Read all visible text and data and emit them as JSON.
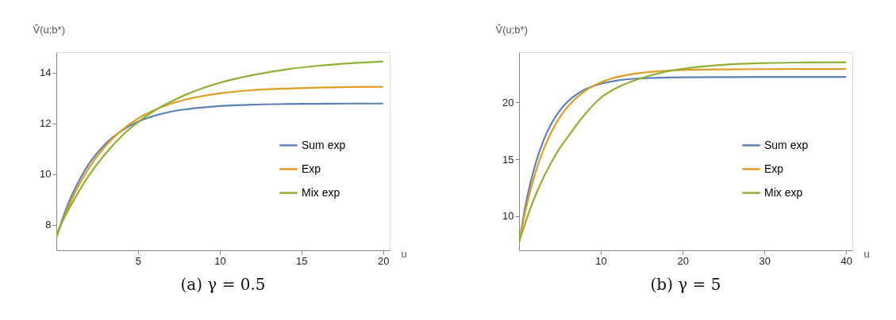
{
  "chart_data": [
    {
      "type": "line",
      "title": "(a) γ = 0.5",
      "xlabel": "u",
      "ylabel": "Ṽ(u;b*)",
      "x": [
        0,
        0.5,
        1,
        1.5,
        2,
        3,
        4,
        5,
        6,
        7,
        8,
        10,
        12,
        14,
        16,
        18,
        20
      ],
      "series": [
        {
          "name": "Sum exp",
          "color": "#5e81b5",
          "values": [
            7.5,
            8.46,
            9.24,
            9.88,
            10.41,
            11.19,
            11.71,
            12.07,
            12.3,
            12.46,
            12.56,
            12.68,
            12.74,
            12.76,
            12.77,
            12.78,
            12.78
          ]
        },
        {
          "name": "Exp",
          "color": "#e19c24",
          "values": [
            7.5,
            8.36,
            9.09,
            9.71,
            10.25,
            11.1,
            11.73,
            12.19,
            12.52,
            12.77,
            12.95,
            13.18,
            13.31,
            13.37,
            13.41,
            13.43,
            13.44
          ]
        },
        {
          "name": "Mix exp",
          "color": "#8fb032",
          "values": [
            7.6,
            8.3,
            8.9,
            9.45,
            9.95,
            10.8,
            11.5,
            12.05,
            12.5,
            12.85,
            13.15,
            13.6,
            13.9,
            14.12,
            14.27,
            14.37,
            14.44
          ]
        }
      ],
      "xlim": [
        0,
        20.4
      ],
      "ylim": [
        7,
        14.8
      ],
      "xticks": [
        5,
        10,
        15,
        20
      ],
      "yticks": [
        8,
        10,
        12,
        14
      ],
      "grid": false,
      "legend": "right"
    },
    {
      "type": "line",
      "title": "(b) γ = 5",
      "xlabel": "u",
      "ylabel": "Ṽ(u;b*)",
      "x": [
        0,
        1,
        2,
        3,
        4,
        5,
        6,
        8,
        10,
        12,
        14,
        16,
        18,
        20,
        25,
        30,
        35,
        40
      ],
      "series": [
        {
          "name": "Sum exp",
          "color": "#5e81b5",
          "values": [
            7.7,
            11.68,
            14.57,
            16.67,
            18.19,
            19.29,
            20.1,
            21.11,
            21.63,
            21.92,
            22.07,
            22.14,
            22.18,
            22.2,
            22.22,
            22.23,
            22.23,
            22.23
          ]
        },
        {
          "name": "Exp",
          "color": "#e19c24",
          "values": [
            7.7,
            11.14,
            13.81,
            15.86,
            17.46,
            18.7,
            19.66,
            20.97,
            21.76,
            22.23,
            22.5,
            22.67,
            22.78,
            22.84,
            22.9,
            22.92,
            22.93,
            22.93
          ]
        },
        {
          "name": "Mix exp",
          "color": "#8fb032",
          "values": [
            7.7,
            9.9,
            11.8,
            13.4,
            14.8,
            16.0,
            17.0,
            18.9,
            20.4,
            21.3,
            21.9,
            22.35,
            22.7,
            22.95,
            23.3,
            23.45,
            23.5,
            23.52
          ]
        }
      ],
      "xlim": [
        0,
        40.75
      ],
      "ylim": [
        7,
        24.4
      ],
      "xticks": [
        10,
        20,
        30,
        40
      ],
      "yticks": [
        10,
        15,
        20
      ],
      "grid": false,
      "legend": "right"
    }
  ]
}
